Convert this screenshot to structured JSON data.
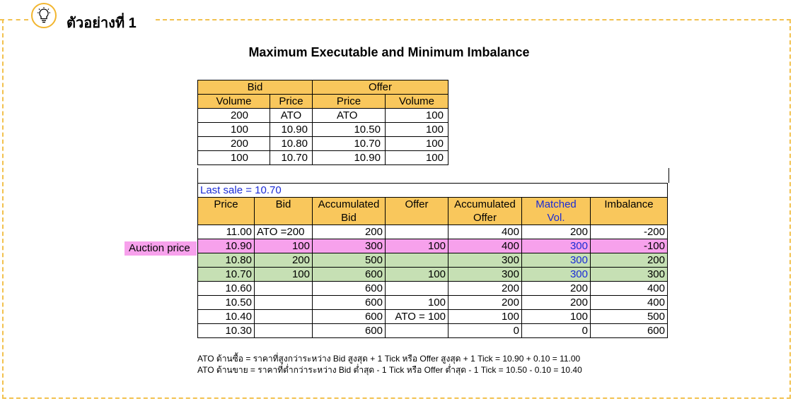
{
  "header": {
    "example_label": "ตัวอย่างที่ 1",
    "icon": "lightbulb-icon"
  },
  "title": "Maximum Executable and Minimum Imbalance",
  "order_book": {
    "group_headers": [
      "Bid",
      "Offer"
    ],
    "columns": [
      "Volume",
      "Price",
      "Price",
      "Volume"
    ],
    "rows": [
      [
        "200",
        "ATO",
        "ATO",
        "100"
      ],
      [
        "100",
        "10.90",
        "10.50",
        "100"
      ],
      [
        "200",
        "10.80",
        "10.70",
        "100"
      ],
      [
        "100",
        "10.70",
        "10.90",
        "100"
      ]
    ]
  },
  "last_sale": "Last sale = 10.70",
  "auction_table": {
    "header_row1": [
      "Price",
      "Bid",
      "Accumulated",
      "Offer",
      "Accumulated",
      "Matched",
      "Imbalance"
    ],
    "header_row2": [
      "",
      "",
      "Bid",
      "",
      "Offer",
      "Vol.",
      ""
    ],
    "rows": [
      [
        "11.00",
        "ATO =200",
        "200",
        "",
        "400",
        "200",
        "-200"
      ],
      [
        "10.90",
        "100",
        "300",
        "100",
        "400",
        "300",
        "-100"
      ],
      [
        "10.80",
        "200",
        "500",
        "",
        "300",
        "300",
        "200"
      ],
      [
        "10.70",
        "100",
        "600",
        "100",
        "300",
        "300",
        "300"
      ],
      [
        "10.60",
        "",
        "600",
        "",
        "200",
        "200",
        "400"
      ],
      [
        "10.50",
        "",
        "600",
        "100",
        "200",
        "200",
        "400"
      ],
      [
        "10.40",
        "",
        "600",
        "ATO = 100",
        "100",
        "100",
        "500"
      ],
      [
        "10.30",
        "",
        "600",
        "",
        "0",
        "0",
        "600"
      ]
    ]
  },
  "auction_price_label": "Auction price",
  "colors": {
    "gold": "#f9c75c",
    "pink": "#f7a1ec",
    "green": "#c6e0b4",
    "blue": "#1a2bd6",
    "dashed_border": "#f2c14e"
  },
  "notes": [
    "ATO ด้านซื้อ = ราคาที่สูงกว่าระหว่าง Bid สูงสุด + 1 Tick หรือ Offer สูงสุด + 1 Tick = 10.90 + 0.10 = 11.00",
    "ATO ด้านขาย = ราคาที่ต่ำกว่าระหว่าง Bid ต่ำสุด - 1 Tick หรือ Offer ต่ำสุด - 1 Tick = 10.50 - 0.10 = 10.40"
  ]
}
